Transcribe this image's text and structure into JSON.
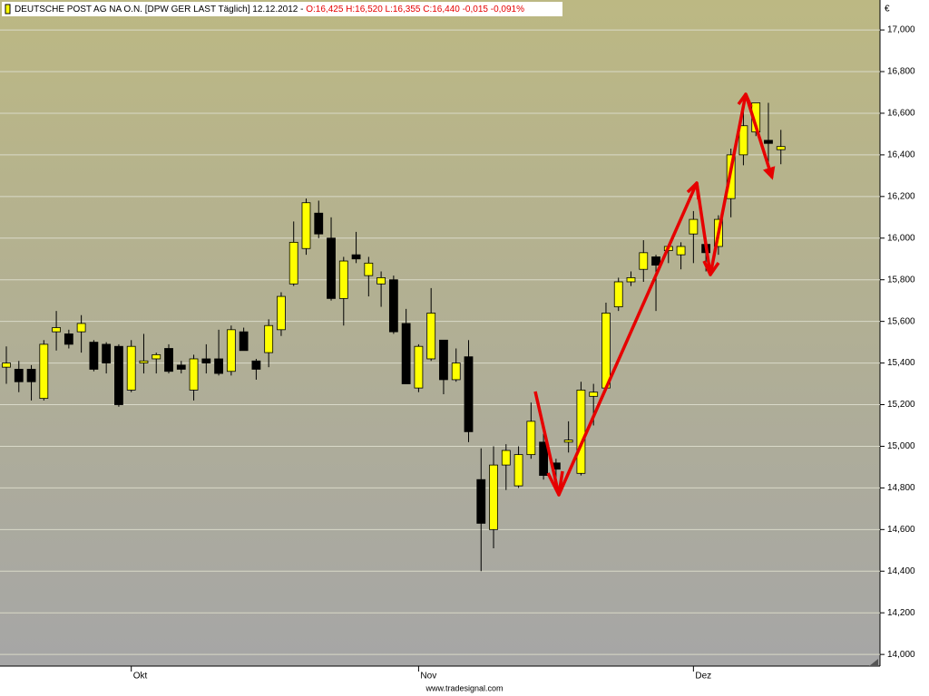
{
  "chart_data": {
    "type": "candlestick",
    "title": "DEUTSCHE POST AG NA O.N. [DPW GER LAST Täglich]",
    "date": "12.12.2012 -",
    "quote": "O:16,425 H:16,520 L:16,355 C:16,440 -0,015 -0,091%",
    "currency": "€",
    "footer": "www.tradesignal.com",
    "categories": [
      null,
      null,
      null,
      null,
      null,
      null,
      null,
      null,
      null,
      null,
      "Okt",
      null,
      null,
      null,
      null,
      null,
      null,
      null,
      null,
      null,
      null,
      null,
      null,
      null,
      null,
      null,
      null,
      null,
      null,
      null,
      null,
      null,
      null,
      "Nov",
      null,
      null,
      null,
      null,
      null,
      null,
      null,
      null,
      null,
      null,
      null,
      null,
      null,
      null,
      null,
      null,
      null,
      null,
      null,
      null,
      null,
      "Dez",
      null,
      null,
      null,
      null,
      null,
      null,
      null
    ],
    "open": [
      15.38,
      15.37,
      15.37,
      15.23,
      15.55,
      15.54,
      15.55,
      15.5,
      15.49,
      15.48,
      15.27,
      15.4,
      15.42,
      15.47,
      15.39,
      15.27,
      15.42,
      15.42,
      15.36,
      15.55,
      15.41,
      15.45,
      15.56,
      15.78,
      15.95,
      16.12,
      16.0,
      15.71,
      15.92,
      15.82,
      15.78,
      15.8,
      15.59,
      15.28,
      15.42,
      15.51,
      15.32,
      15.43,
      14.84,
      14.6,
      14.91,
      14.81,
      14.96,
      15.02,
      14.92,
      15.02,
      14.87,
      15.24,
      15.28,
      15.67,
      15.79,
      15.85,
      15.91,
      15.94,
      15.92,
      16.02,
      15.97,
      15.96,
      16.19,
      16.4,
      16.51,
      16.47,
      16.425
    ],
    "high": [
      15.48,
      15.41,
      15.39,
      15.51,
      15.65,
      15.56,
      15.63,
      15.51,
      15.5,
      15.49,
      15.51,
      15.54,
      15.45,
      15.49,
      15.41,
      15.44,
      15.49,
      15.56,
      15.58,
      15.57,
      15.42,
      15.61,
      15.74,
      16.08,
      16.19,
      16.18,
      16.1,
      15.91,
      16.03,
      15.91,
      15.84,
      15.82,
      15.66,
      15.49,
      15.76,
      15.51,
      15.47,
      15.51,
      14.99,
      15.0,
      15.01,
      15.0,
      15.21,
      15.06,
      14.94,
      15.12,
      15.31,
      15.3,
      15.69,
      15.81,
      15.84,
      15.99,
      15.92,
      15.97,
      15.98,
      16.13,
      16.0,
      16.11,
      16.43,
      16.66,
      16.65,
      16.65,
      16.52
    ],
    "low": [
      15.3,
      15.26,
      15.22,
      15.22,
      15.46,
      15.47,
      15.45,
      15.36,
      15.35,
      15.19,
      15.26,
      15.35,
      15.35,
      15.35,
      15.35,
      15.22,
      15.35,
      15.34,
      15.34,
      15.46,
      15.32,
      15.38,
      15.53,
      15.77,
      15.92,
      16.0,
      15.7,
      15.58,
      15.88,
      15.72,
      15.67,
      15.54,
      15.3,
      15.26,
      15.41,
      15.25,
      15.31,
      15.02,
      14.4,
      14.51,
      14.79,
      14.8,
      14.94,
      14.84,
      14.84,
      14.97,
      14.86,
      15.1,
      15.27,
      15.65,
      15.77,
      15.79,
      15.65,
      15.88,
      15.85,
      15.88,
      15.84,
      15.92,
      16.1,
      16.35,
      16.49,
      16.34,
      16.355
    ],
    "close": [
      15.4,
      15.31,
      15.31,
      15.49,
      15.57,
      15.49,
      15.59,
      15.37,
      15.4,
      15.2,
      15.48,
      15.41,
      15.44,
      15.36,
      15.37,
      15.42,
      15.4,
      15.35,
      15.56,
      15.46,
      15.37,
      15.58,
      15.72,
      15.98,
      16.17,
      16.02,
      15.71,
      15.89,
      15.9,
      15.88,
      15.81,
      15.55,
      15.3,
      15.48,
      15.64,
      15.32,
      15.4,
      15.07,
      14.63,
      14.91,
      14.98,
      14.96,
      15.12,
      14.86,
      14.89,
      15.03,
      15.27,
      15.26,
      15.64,
      15.79,
      15.81,
      15.93,
      15.87,
      15.96,
      15.96,
      16.09,
      15.93,
      16.09,
      16.4,
      16.54,
      16.65,
      16.455,
      16.44
    ],
    "up_color": "#ffff00",
    "down_color": "#000000",
    "ylim": [
      13.944,
      17.144
    ],
    "yticks": [
      {
        "value": 14,
        "label": "14,000"
      },
      {
        "value": 14.2,
        "label": "14,200"
      },
      {
        "value": 14.4,
        "label": "14,400"
      },
      {
        "value": 14.6,
        "label": "14,600"
      },
      {
        "value": 14.8,
        "label": "14,800"
      },
      {
        "value": 15,
        "label": "15,000"
      },
      {
        "value": 15.2,
        "label": "15,200"
      },
      {
        "value": 15.4,
        "label": "15,400"
      },
      {
        "value": 15.6,
        "label": "15,600"
      },
      {
        "value": 15.8,
        "label": "15,800"
      },
      {
        "value": 16,
        "label": "16,000"
      },
      {
        "value": 16.2,
        "label": "16,200"
      },
      {
        "value": 16.4,
        "label": "16,400"
      },
      {
        "value": 16.6,
        "label": "16,600"
      },
      {
        "value": 16.8,
        "label": "16,800"
      },
      {
        "value": 17,
        "label": "17,000"
      }
    ],
    "grid": true
  }
}
